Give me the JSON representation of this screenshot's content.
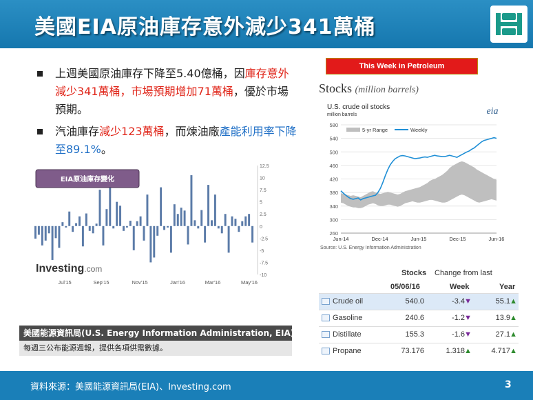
{
  "header": {
    "title": "美國EIA原油庫存意外減少341萬桶"
  },
  "bullets": [
    {
      "parts": [
        {
          "text": "上週美國原油庫存下降至5.40億桶，因",
          "style": ""
        },
        {
          "text": "庫存意外減少341萬桶，市場預期增加71萬桶",
          "style": "red"
        },
        {
          "text": "，優於市場預期。",
          "style": ""
        }
      ]
    },
    {
      "parts": [
        {
          "text": "汽油庫存",
          "style": ""
        },
        {
          "text": "減少123萬桶",
          "style": "red"
        },
        {
          "text": "，而煉油廠",
          "style": ""
        },
        {
          "text": "產能利用率下降至89.1%",
          "style": "blue"
        },
        {
          "text": "。",
          "style": ""
        }
      ]
    }
  ],
  "colors": {
    "header": "#1a7fb8",
    "accent_red": "#e0261a",
    "accent_blue": "#1f6fc6",
    "bar": "#5b7ba8",
    "range": "#bfbfbf",
    "weekly": "#1f8fd6"
  },
  "badge": "This Week in Petroleum",
  "stocks_title": {
    "main": "Stocks",
    "unit": "(million barrels)"
  },
  "eia_box": {
    "head": "美國能源資訊局(U.S. Energy Information Administration, EIA)",
    "body": "每週三公布能源週報，提供各項供需數據。"
  },
  "footer": {
    "source": "資料來源：美國能源資訊局(EIA)、Investing.com",
    "page": "3"
  },
  "chart_data": [
    {
      "type": "bar",
      "legend_label": "EIA原油庫存變化",
      "watermark": "Investing.com",
      "x_tick_labels": [
        "Jul'15",
        "Sep'15",
        "Nov'15",
        "Jan'16",
        "Mar'16",
        "May'16"
      ],
      "y_tick_labels": [
        "12.5",
        "10",
        "7.5",
        "5",
        "2.5",
        "0",
        "-2.5",
        "-5",
        "-7.5",
        "-10"
      ],
      "ylim": [
        -10,
        12.5
      ],
      "values": [
        -2.6,
        -1.8,
        -4.0,
        -3.0,
        -1.5,
        -7.0,
        -2.5,
        -4.5,
        0.8,
        -0.3,
        3.0,
        -1.2,
        0.6,
        2.0,
        -4.2,
        2.6,
        -1.0,
        -1.5,
        0.5,
        7.5,
        -4.0,
        3.5,
        8.0,
        -0.5,
        5.0,
        4.2,
        -1.0,
        -0.3,
        1.1,
        -5.0,
        1.0,
        2.0,
        -3.0,
        6.5,
        -7.5,
        -6.5,
        -2.0,
        8.0,
        -0.8,
        -0.3,
        -5.5,
        4.5,
        2.5,
        3.8,
        3.2,
        -3.8,
        10.5,
        1.2,
        -0.5,
        3.3,
        -3.4,
        8.5,
        1.2,
        6.5,
        -0.5,
        -1.5,
        2.5,
        -5.5,
        2.0,
        1.5,
        -1.2,
        1.0,
        2.0,
        2.5,
        -3.4
      ]
    },
    {
      "type": "line",
      "title": "U.S. crude oil stocks",
      "subtitle": "million barrels",
      "source": "Source: U.S. Energy Information Administration",
      "logo_text": "eia",
      "legend": [
        "5-yr Range",
        "Weekly"
      ],
      "x_tick_labels": [
        "Jun-14",
        "Dec-14",
        "Jun-15",
        "Dec-15",
        "Jun-16"
      ],
      "y_tick_labels": [
        "580",
        "540",
        "500",
        "460",
        "420",
        "380",
        "340",
        "300",
        "260"
      ],
      "ylim": [
        260,
        580
      ],
      "weekly": [
        385,
        378,
        372,
        366,
        362,
        360,
        362,
        364,
        358,
        362,
        364,
        366,
        368,
        370,
        372,
        380,
        392,
        410,
        430,
        448,
        462,
        472,
        480,
        484,
        488,
        489,
        488,
        486,
        484,
        482,
        480,
        481,
        482,
        484,
        485,
        484,
        486,
        488,
        490,
        488,
        487,
        486,
        486,
        488,
        490,
        488,
        486,
        484,
        488,
        492,
        496,
        500,
        503,
        508,
        512,
        518,
        524,
        530,
        534,
        536,
        538,
        540,
        542,
        540
      ],
      "range_hi": [
        378,
        376,
        374,
        372,
        370,
        372,
        370,
        368,
        366,
        370,
        374,
        378,
        382,
        384,
        380,
        378,
        376,
        378,
        380,
        382,
        380,
        378,
        376,
        374,
        376,
        380,
        384,
        386,
        388,
        390,
        392,
        394,
        396,
        400,
        404,
        408,
        414,
        418,
        420,
        424,
        428,
        432,
        438,
        444,
        452,
        458,
        462,
        466,
        470,
        472,
        470,
        466,
        462,
        458,
        454,
        448,
        444,
        440,
        436,
        432,
        428,
        424,
        420,
        418
      ],
      "range_lo": [
        350,
        348,
        344,
        340,
        338,
        336,
        336,
        334,
        334,
        336,
        340,
        344,
        346,
        348,
        346,
        342,
        340,
        340,
        342,
        344,
        344,
        342,
        340,
        338,
        340,
        344,
        348,
        350,
        352,
        354,
        352,
        350,
        350,
        352,
        354,
        356,
        358,
        358,
        356,
        354,
        352,
        350,
        350,
        352,
        356,
        360,
        364,
        368,
        372,
        374,
        372,
        368,
        364,
        360,
        356,
        352,
        350,
        352,
        354,
        356,
        358,
        360,
        358,
        356
      ]
    },
    {
      "type": "table",
      "headers": {
        "name": "",
        "stocks": "Stocks",
        "date": "05/06/16",
        "change": "Change from last",
        "week": "Week",
        "year": "Year"
      },
      "rows": [
        {
          "name": "Crude oil",
          "stocks": "540.0",
          "week": "-3.4",
          "week_dir": "down",
          "year": "55.1",
          "year_dir": "up"
        },
        {
          "name": "Gasoline",
          "stocks": "240.6",
          "week": "-1.2",
          "week_dir": "down",
          "year": "13.9",
          "year_dir": "up"
        },
        {
          "name": "Distillate",
          "stocks": "155.3",
          "week": "-1.6",
          "week_dir": "down",
          "year": "27.1",
          "year_dir": "up"
        },
        {
          "name": "Propane",
          "stocks": "73.176",
          "week": "1.318",
          "week_dir": "up",
          "year": "4.717",
          "year_dir": "up"
        }
      ]
    }
  ]
}
